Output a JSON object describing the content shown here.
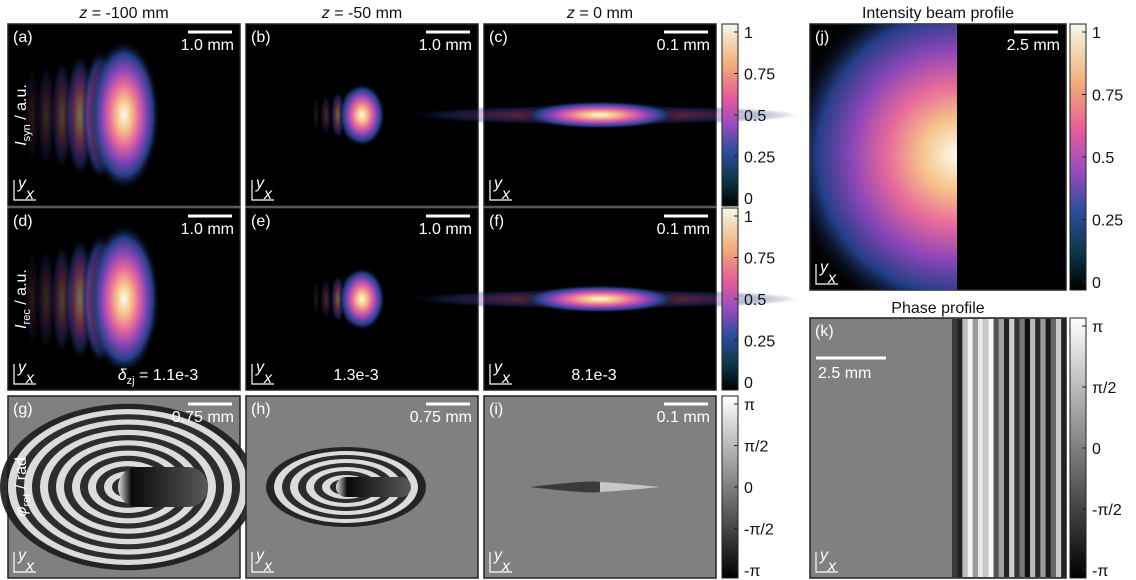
{
  "columns": [
    {
      "var": "z",
      "text": " = -100 mm"
    },
    {
      "var": "z",
      "text": " = -50 mm"
    },
    {
      "var": "z",
      "text": " = 0 mm"
    }
  ],
  "row_labels": [
    {
      "symbol": "I",
      "subscript": "syn",
      "unit": " / a.u."
    },
    {
      "symbol": "I",
      "subscript": "rec",
      "unit": " / a.u."
    },
    {
      "symbol": "φ",
      "subscript": "ret",
      "unit": " / rad"
    }
  ],
  "panels": [
    {
      "label": "(a)",
      "scale": "1.0 mm"
    },
    {
      "label": "(b)",
      "scale": "1.0 mm"
    },
    {
      "label": "(c)",
      "scale": "0.1 mm"
    },
    {
      "label": "(d)",
      "scale": "1.0 mm"
    },
    {
      "label": "(e)",
      "scale": "1.0 mm"
    },
    {
      "label": "(f)",
      "scale": "0.1 mm"
    },
    {
      "label": "(g)",
      "scale": "0.75 mm"
    },
    {
      "label": "(h)",
      "scale": "0.75 mm"
    },
    {
      "label": "(i)",
      "scale": "0.1 mm"
    }
  ],
  "errors": {
    "symbol": "δ",
    "subscript": "zj",
    "first": " = 1.1e-3",
    "others": [
      "1.3e-3",
      "8.1e-3"
    ]
  },
  "axes": {
    "x": "x",
    "y": "y"
  },
  "intensity_ticks": [
    "0",
    "0.25",
    "0.5",
    "0.75",
    "1"
  ],
  "phase_ticks": [
    "-π",
    "-π/2",
    "0",
    "π/2",
    "π"
  ],
  "beam": {
    "title": "Intensity beam profile",
    "label": "(j)",
    "scale": "2.5 mm"
  },
  "phase": {
    "title": "Phase profile",
    "label": "(k)",
    "scale": "2.5 mm"
  }
}
